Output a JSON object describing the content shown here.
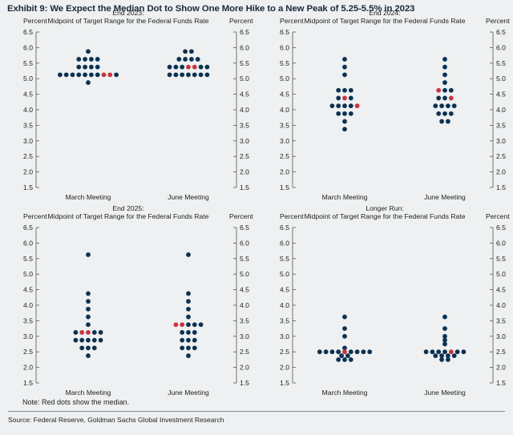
{
  "title": "Exhibit 9: We Expect the Median Dot to Show One More Hike to a New Peak of 5.25-5.5% in 2023",
  "note": "Note: Red dots show the median.",
  "source": "Source: Federal Reserve, Goldman Sachs Global Investment Research",
  "colors": {
    "dot": "#0c3152",
    "median": "#c8353c",
    "axis": "#555555",
    "background": "#eef0f1"
  },
  "chart_data": [
    {
      "type": "scatter",
      "title": "End 2023:",
      "subtitle": "Midpoint of Target Range for the Federal Funds Rate",
      "ylabel_left": "Percent",
      "ylabel_right": "Percent",
      "ylim": [
        1.5,
        6.5
      ],
      "yticks": [
        "1.5",
        "2.0",
        "2.5",
        "3.0",
        "3.5",
        "4.0",
        "4.5",
        "5.0",
        "5.5",
        "6.0",
        "6.5"
      ],
      "categories": [
        "March Meeting",
        "June Meeting"
      ],
      "series": [
        {
          "name": "March Meeting",
          "levels": [
            {
              "value": 5.875,
              "count": 1
            },
            {
              "value": 5.625,
              "count": 4
            },
            {
              "value": 5.375,
              "count": 4
            },
            {
              "value": 5.125,
              "count": 10,
              "median_index": [
                7,
                8
              ]
            },
            {
              "value": 4.875,
              "count": 1
            }
          ]
        },
        {
          "name": "June Meeting",
          "levels": [
            {
              "value": 5.875,
              "count": 2
            },
            {
              "value": 5.625,
              "count": 4
            },
            {
              "value": 5.375,
              "count": 7,
              "median_index": [
                3,
                4
              ]
            },
            {
              "value": 5.125,
              "count": 7
            }
          ]
        }
      ]
    },
    {
      "type": "scatter",
      "title": "End 2024:",
      "subtitle": "Midpoint of Target Range for the Federal Funds Rate",
      "ylabel_left": "Percent",
      "ylabel_right": "Percent",
      "ylim": [
        1.5,
        6.5
      ],
      "yticks": [
        "1.5",
        "2.0",
        "2.5",
        "3.0",
        "3.5",
        "4.0",
        "4.5",
        "5.0",
        "5.5",
        "6.0",
        "6.5"
      ],
      "categories": [
        "March Meeting",
        "June Meeting"
      ],
      "series": [
        {
          "name": "March Meeting",
          "levels": [
            {
              "value": 5.625,
              "count": 1
            },
            {
              "value": 5.375,
              "count": 1
            },
            {
              "value": 5.125,
              "count": 1
            },
            {
              "value": 4.625,
              "count": 3
            },
            {
              "value": 4.375,
              "count": 3,
              "median_index": [
                1
              ]
            },
            {
              "value": 4.125,
              "count": 5,
              "median_index": [
                4
              ]
            },
            {
              "value": 3.875,
              "count": 3
            },
            {
              "value": 3.625,
              "count": 1
            },
            {
              "value": 3.375,
              "count": 1
            }
          ]
        },
        {
          "name": "June Meeting",
          "levels": [
            {
              "value": 5.625,
              "count": 1
            },
            {
              "value": 5.375,
              "count": 1
            },
            {
              "value": 5.125,
              "count": 1
            },
            {
              "value": 4.875,
              "count": 1
            },
            {
              "value": 4.625,
              "count": 3,
              "median_index": [
                0
              ]
            },
            {
              "value": 4.375,
              "count": 3,
              "median_index": [
                2
              ]
            },
            {
              "value": 4.125,
              "count": 4
            },
            {
              "value": 3.875,
              "count": 3
            },
            {
              "value": 3.625,
              "count": 2
            }
          ]
        }
      ]
    },
    {
      "type": "scatter",
      "title": "End 2025:",
      "subtitle": "Midpoint of Target Range for the Federal Funds Rate",
      "ylabel_left": "Percent",
      "ylabel_right": "Percent",
      "ylim": [
        1.5,
        6.5
      ],
      "yticks": [
        "1.5",
        "2.0",
        "2.5",
        "3.0",
        "3.5",
        "4.0",
        "4.5",
        "5.0",
        "5.5",
        "6.0",
        "6.5"
      ],
      "categories": [
        "March Meeting",
        "June Meeting"
      ],
      "series": [
        {
          "name": "March Meeting",
          "levels": [
            {
              "value": 5.625,
              "count": 1
            },
            {
              "value": 4.375,
              "count": 1
            },
            {
              "value": 4.125,
              "count": 1
            },
            {
              "value": 3.875,
              "count": 1
            },
            {
              "value": 3.625,
              "count": 1
            },
            {
              "value": 3.375,
              "count": 1
            },
            {
              "value": 3.125,
              "count": 5,
              "median_index": [
                1,
                2
              ]
            },
            {
              "value": 2.875,
              "count": 5
            },
            {
              "value": 2.625,
              "count": 3
            },
            {
              "value": 2.375,
              "count": 1
            }
          ]
        },
        {
          "name": "June Meeting",
          "levels": [
            {
              "value": 5.625,
              "count": 1
            },
            {
              "value": 4.375,
              "count": 1
            },
            {
              "value": 4.125,
              "count": 1
            },
            {
              "value": 3.875,
              "count": 1
            },
            {
              "value": 3.625,
              "count": 1
            },
            {
              "value": 3.375,
              "count": 5,
              "median_index": [
                0,
                1
              ]
            },
            {
              "value": 3.125,
              "count": 3
            },
            {
              "value": 2.875,
              "count": 3
            },
            {
              "value": 2.625,
              "count": 3
            },
            {
              "value": 2.375,
              "count": 1
            }
          ]
        }
      ]
    },
    {
      "type": "scatter",
      "title": "Longer Run:",
      "subtitle": "Midpoint of Target Range for the Federal Funds Rate",
      "ylabel_left": "Percent",
      "ylabel_right": "Percent",
      "ylim": [
        1.5,
        6.5
      ],
      "yticks": [
        "1.5",
        "2.0",
        "2.5",
        "3.0",
        "3.5",
        "4.0",
        "4.5",
        "5.0",
        "5.5",
        "6.0",
        "6.5"
      ],
      "categories": [
        "March Meeting",
        "June Meeting"
      ],
      "series": [
        {
          "name": "March Meeting",
          "levels": [
            {
              "value": 3.625,
              "count": 1
            },
            {
              "value": 3.25,
              "count": 1
            },
            {
              "value": 3.0,
              "count": 1
            },
            {
              "value": 2.625,
              "count": 1
            },
            {
              "value": 2.5,
              "count": 9,
              "median_index": [
                4
              ]
            },
            {
              "value": 2.375,
              "count": 2
            },
            {
              "value": 2.25,
              "count": 3
            }
          ]
        },
        {
          "name": "June Meeting",
          "levels": [
            {
              "value": 3.625,
              "count": 1
            },
            {
              "value": 3.25,
              "count": 1
            },
            {
              "value": 3.0,
              "count": 1
            },
            {
              "value": 2.875,
              "count": 1
            },
            {
              "value": 2.75,
              "count": 1
            },
            {
              "value": 2.5,
              "count": 7,
              "median_index": [
                4
              ]
            },
            {
              "value": 2.375,
              "count": 4
            },
            {
              "value": 2.25,
              "count": 2
            }
          ]
        }
      ]
    }
  ]
}
